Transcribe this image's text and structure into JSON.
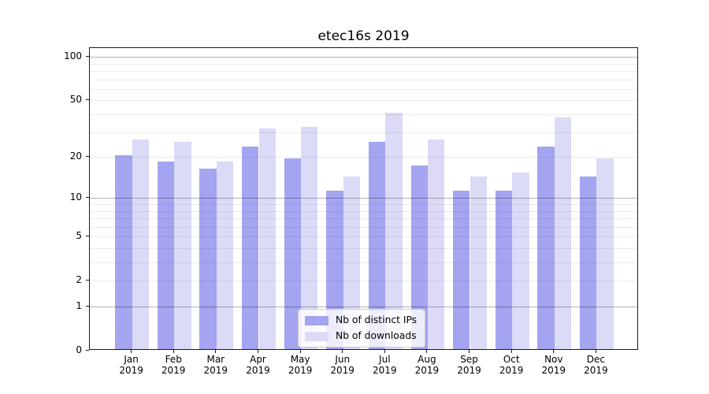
{
  "chart_data": {
    "type": "bar",
    "title": "etec16s 2019",
    "categories": [
      "Jan 2019",
      "Feb 2019",
      "Mar 2019",
      "Apr 2019",
      "May 2019",
      "Jun 2019",
      "Jul 2019",
      "Aug 2019",
      "Sep 2019",
      "Oct 2019",
      "Nov 2019",
      "Dec 2019"
    ],
    "series": [
      {
        "name": "Nb of distinct IPs",
        "color": "#a4a4f1",
        "values": [
          20,
          18,
          16,
          23,
          19,
          11,
          25,
          17,
          11,
          11,
          23,
          14
        ]
      },
      {
        "name": "Nb of downloads",
        "color": "#dbdbf8",
        "values": [
          26,
          25,
          18,
          31,
          32,
          14,
          40,
          26,
          14,
          15,
          37,
          19
        ]
      }
    ],
    "xlabel": "",
    "ylabel": "",
    "y_scale": "log1p",
    "y_max": 115,
    "y_ticks": [
      0,
      1,
      2,
      5,
      10,
      20,
      50,
      100
    ],
    "y_major_grid": [
      1,
      10,
      100
    ],
    "y_minor_grid": [
      2,
      3,
      4,
      5,
      6,
      7,
      8,
      9,
      20,
      30,
      40,
      50,
      60,
      70,
      80,
      90
    ],
    "grid_on": true,
    "legend_position": "lower center",
    "colors": {
      "major_grid": "rgba(0,0,0,0.30)",
      "minor_grid": "rgba(0,0,0,0.08)",
      "spine": "#1a1a1a",
      "background": "#ffffff"
    }
  }
}
